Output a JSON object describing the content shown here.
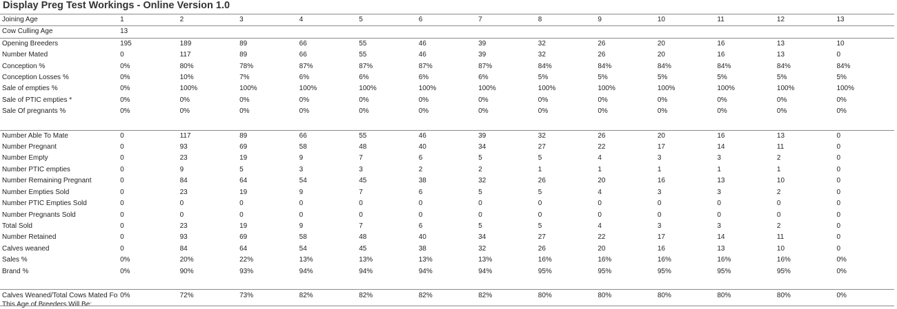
{
  "title": "Display Preg Test Workings - Online Version 1.0",
  "columns": [
    "1",
    "2",
    "3",
    "4",
    "5",
    "6",
    "7",
    "8",
    "9",
    "10",
    "11",
    "12",
    "13"
  ],
  "header": {
    "joining_age_label": "Joining Age",
    "cow_culling_age_label": "Cow Culling Age",
    "cow_culling_age_value": "13"
  },
  "section1": [
    {
      "label": "Opening Breeders",
      "values": [
        "195",
        "189",
        "89",
        "66",
        "55",
        "46",
        "39",
        "32",
        "26",
        "20",
        "16",
        "13",
        "10"
      ]
    },
    {
      "label": "Number Mated",
      "values": [
        "0",
        "117",
        "89",
        "66",
        "55",
        "46",
        "39",
        "32",
        "26",
        "20",
        "16",
        "13",
        "0"
      ]
    },
    {
      "label": "Conception %",
      "values": [
        "0%",
        "80%",
        "78%",
        "87%",
        "87%",
        "87%",
        "87%",
        "84%",
        "84%",
        "84%",
        "84%",
        "84%",
        "84%"
      ]
    },
    {
      "label": "Conception Losses %",
      "values": [
        "0%",
        "10%",
        "7%",
        "6%",
        "6%",
        "6%",
        "6%",
        "5%",
        "5%",
        "5%",
        "5%",
        "5%",
        "5%"
      ]
    },
    {
      "label": "Sale of empties %",
      "values": [
        "0%",
        "100%",
        "100%",
        "100%",
        "100%",
        "100%",
        "100%",
        "100%",
        "100%",
        "100%",
        "100%",
        "100%",
        "100%"
      ]
    },
    {
      "label": "Sale of PTIC empties *",
      "values": [
        "0%",
        "0%",
        "0%",
        "0%",
        "0%",
        "0%",
        "0%",
        "0%",
        "0%",
        "0%",
        "0%",
        "0%",
        "0%"
      ]
    },
    {
      "label": "Sale Of pregnants %",
      "values": [
        "0%",
        "0%",
        "0%",
        "0%",
        "0%",
        "0%",
        "0%",
        "0%",
        "0%",
        "0%",
        "0%",
        "0%",
        "0%"
      ]
    }
  ],
  "section2": [
    {
      "label": "Number Able To Mate",
      "values": [
        "0",
        "117",
        "89",
        "66",
        "55",
        "46",
        "39",
        "32",
        "26",
        "20",
        "16",
        "13",
        "0"
      ]
    },
    {
      "label": "Number Pregnant",
      "values": [
        "0",
        "93",
        "69",
        "58",
        "48",
        "40",
        "34",
        "27",
        "22",
        "17",
        "14",
        "11",
        "0"
      ]
    },
    {
      "label": "Number Empty",
      "values": [
        "0",
        "23",
        "19",
        "9",
        "7",
        "6",
        "5",
        "5",
        "4",
        "3",
        "3",
        "2",
        "0"
      ]
    },
    {
      "label": "Number PTIC empties",
      "values": [
        "0",
        "9",
        "5",
        "3",
        "3",
        "2",
        "2",
        "1",
        "1",
        "1",
        "1",
        "1",
        "0"
      ]
    },
    {
      "label": "Number Remaining Pregnant",
      "values": [
        "0",
        "84",
        "64",
        "54",
        "45",
        "38",
        "32",
        "26",
        "20",
        "16",
        "13",
        "10",
        "0"
      ]
    },
    {
      "label": "Number Empties Sold",
      "values": [
        "0",
        "23",
        "19",
        "9",
        "7",
        "6",
        "5",
        "5",
        "4",
        "3",
        "3",
        "2",
        "0"
      ]
    },
    {
      "label": "Number PTIC Empties Sold",
      "values": [
        "0",
        "0",
        "0",
        "0",
        "0",
        "0",
        "0",
        "0",
        "0",
        "0",
        "0",
        "0",
        "0"
      ]
    },
    {
      "label": "Number Pregnants Sold",
      "values": [
        "0",
        "0",
        "0",
        "0",
        "0",
        "0",
        "0",
        "0",
        "0",
        "0",
        "0",
        "0",
        "0"
      ]
    },
    {
      "label": "Total Sold",
      "values": [
        "0",
        "23",
        "19",
        "9",
        "7",
        "6",
        "5",
        "5",
        "4",
        "3",
        "3",
        "2",
        "0"
      ]
    },
    {
      "label": "Number Retained",
      "values": [
        "0",
        "93",
        "69",
        "58",
        "48",
        "40",
        "34",
        "27",
        "22",
        "17",
        "14",
        "11",
        "0"
      ]
    },
    {
      "label": "Calves weaned",
      "values": [
        "0",
        "84",
        "64",
        "54",
        "45",
        "38",
        "32",
        "26",
        "20",
        "16",
        "13",
        "10",
        "0"
      ]
    },
    {
      "label": "Sales %",
      "values": [
        "0%",
        "20%",
        "22%",
        "13%",
        "13%",
        "13%",
        "13%",
        "16%",
        "16%",
        "16%",
        "16%",
        "16%",
        "0%"
      ]
    },
    {
      "label": "Brand %",
      "values": [
        "0%",
        "90%",
        "93%",
        "94%",
        "94%",
        "94%",
        "94%",
        "95%",
        "95%",
        "95%",
        "95%",
        "95%",
        "0%"
      ]
    }
  ],
  "section3": {
    "label_line1": "Calves Weaned/Total Cows Mated For",
    "label_line2": "This Age of Breeders Will Be:",
    "values": [
      "0%",
      "72%",
      "73%",
      "82%",
      "82%",
      "82%",
      "82%",
      "80%",
      "80%",
      "80%",
      "80%",
      "80%",
      "0%"
    ]
  }
}
